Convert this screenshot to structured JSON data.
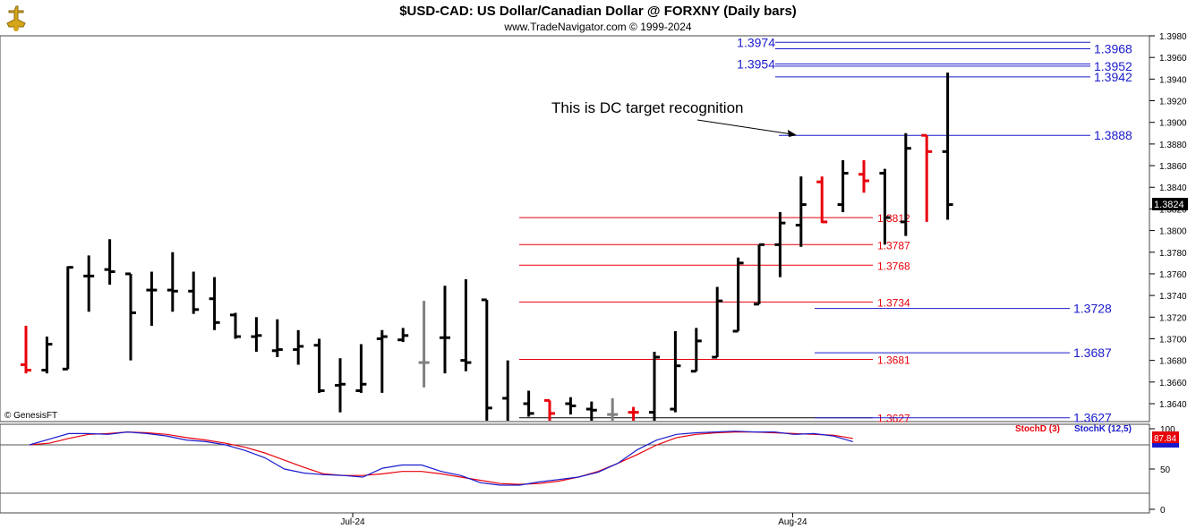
{
  "header": {
    "title": "$USD-CAD:  US Dollar/Canadian Dollar @ FORXNY  (Daily bars)",
    "subtitle": "www.TradeNavigator.com © 1999-2024"
  },
  "watermark": "© GenesisFT",
  "logo": {
    "icon": "golden-bull-logo-icon"
  },
  "colors": {
    "up_bar": "#000000",
    "down_bar": "#e8000b",
    "neutral_bar": "#808080",
    "blue_level": "#1a1acc",
    "red_level": "#e8000b",
    "last_price_bg": "#000000",
    "stoch_d": "#e8000b",
    "stoch_k": "#1a1acc"
  },
  "chart_data": [
    {
      "type": "ohlc",
      "title": "$USD-CAD:  US Dollar/Canadian Dollar @ FORXNY  (Daily bars)",
      "ylim": [
        1.3615,
        1.399
      ],
      "y_ticks": [
        "1.3980",
        "1.3960",
        "1.3940",
        "1.3920",
        "1.3900",
        "1.3880",
        "1.3860",
        "1.3840",
        "1.3820",
        "1.3800",
        "1.3780",
        "1.3760",
        "1.3740",
        "1.3720",
        "1.3700",
        "1.3680",
        "1.3660",
        "1.3640"
      ],
      "x_labels": [
        {
          "label": "Jul-24",
          "bar_index": 15
        },
        {
          "label": "Aug-24",
          "bar_index": 36
        }
      ],
      "last_price": "1.3824",
      "bars": [
        {
          "o": 1.3676,
          "h": 1.3712,
          "l": 1.3668,
          "c": 1.3671,
          "color": "red"
        },
        {
          "o": 1.3671,
          "h": 1.3702,
          "l": 1.3668,
          "c": 1.3695,
          "color": "black"
        },
        {
          "o": 1.3672,
          "h": 1.3767,
          "l": 1.3672,
          "c": 1.3766,
          "color": "black"
        },
        {
          "o": 1.3758,
          "h": 1.3777,
          "l": 1.3725,
          "c": 1.3758,
          "color": "black"
        },
        {
          "o": 1.3764,
          "h": 1.3792,
          "l": 1.375,
          "c": 1.3762,
          "color": "black"
        },
        {
          "o": 1.376,
          "h": 1.376,
          "l": 1.368,
          "c": 1.3724,
          "color": "black"
        },
        {
          "o": 1.3745,
          "h": 1.3762,
          "l": 1.3712,
          "c": 1.3745,
          "color": "black"
        },
        {
          "o": 1.3745,
          "h": 1.378,
          "l": 1.3725,
          "c": 1.3744,
          "color": "black"
        },
        {
          "o": 1.3744,
          "h": 1.3762,
          "l": 1.3723,
          "c": 1.3727,
          "color": "black"
        },
        {
          "o": 1.3737,
          "h": 1.3757,
          "l": 1.3708,
          "c": 1.3715,
          "color": "black"
        },
        {
          "o": 1.3722,
          "h": 1.3724,
          "l": 1.37,
          "c": 1.3702,
          "color": "black"
        },
        {
          "o": 1.3702,
          "h": 1.372,
          "l": 1.3688,
          "c": 1.3703,
          "color": "black"
        },
        {
          "o": 1.3689,
          "h": 1.3718,
          "l": 1.3683,
          "c": 1.369,
          "color": "black"
        },
        {
          "o": 1.369,
          "h": 1.3708,
          "l": 1.3676,
          "c": 1.3693,
          "color": "black"
        },
        {
          "o": 1.3694,
          "h": 1.37,
          "l": 1.365,
          "c": 1.3652,
          "color": "black"
        },
        {
          "o": 1.3657,
          "h": 1.3682,
          "l": 1.3632,
          "c": 1.3658,
          "color": "black"
        },
        {
          "o": 1.3652,
          "h": 1.3695,
          "l": 1.365,
          "c": 1.3658,
          "color": "black"
        },
        {
          "o": 1.37,
          "h": 1.3708,
          "l": 1.365,
          "c": 1.3702,
          "color": "black"
        },
        {
          "o": 1.3699,
          "h": 1.371,
          "l": 1.3697,
          "c": 1.3703,
          "color": "black"
        },
        {
          "o": 1.3678,
          "h": 1.3735,
          "l": 1.3655,
          "c": 1.3678,
          "color": "gray"
        },
        {
          "o": 1.3701,
          "h": 1.3749,
          "l": 1.3668,
          "c": 1.3701,
          "color": "black"
        },
        {
          "o": 1.368,
          "h": 1.3755,
          "l": 1.367,
          "c": 1.3678,
          "color": "black"
        },
        {
          "o": 1.3736,
          "h": 1.3736,
          "l": 1.3618,
          "c": 1.3636,
          "color": "black"
        },
        {
          "o": 1.3645,
          "h": 1.368,
          "l": 1.3618,
          "c": 1.362,
          "color": "black"
        },
        {
          "o": 1.364,
          "h": 1.3652,
          "l": 1.3628,
          "c": 1.3631,
          "color": "black"
        },
        {
          "o": 1.3643,
          "h": 1.3643,
          "l": 1.362,
          "c": 1.3631,
          "color": "red"
        },
        {
          "o": 1.364,
          "h": 1.3646,
          "l": 1.363,
          "c": 1.3638,
          "color": "black"
        },
        {
          "o": 1.3635,
          "h": 1.3642,
          "l": 1.3622,
          "c": 1.3634,
          "color": "black"
        },
        {
          "o": 1.363,
          "h": 1.3645,
          "l": 1.362,
          "c": 1.363,
          "color": "gray"
        },
        {
          "o": 1.3632,
          "h": 1.3637,
          "l": 1.3622,
          "c": 1.3632,
          "color": "red"
        },
        {
          "o": 1.3632,
          "h": 1.3688,
          "l": 1.362,
          "c": 1.3683,
          "color": "black"
        },
        {
          "o": 1.3635,
          "h": 1.3707,
          "l": 1.3632,
          "c": 1.3675,
          "color": "black"
        },
        {
          "o": 1.367,
          "h": 1.371,
          "l": 1.367,
          "c": 1.3698,
          "color": "black"
        },
        {
          "o": 1.3683,
          "h": 1.3748,
          "l": 1.3683,
          "c": 1.3735,
          "color": "black"
        },
        {
          "o": 1.3707,
          "h": 1.3775,
          "l": 1.3707,
          "c": 1.377,
          "color": "black"
        },
        {
          "o": 1.3732,
          "h": 1.3787,
          "l": 1.3732,
          "c": 1.3787,
          "color": "black"
        },
        {
          "o": 1.3787,
          "h": 1.3817,
          "l": 1.3757,
          "c": 1.3807,
          "color": "black"
        },
        {
          "o": 1.3805,
          "h": 1.385,
          "l": 1.3785,
          "c": 1.3824,
          "color": "black"
        },
        {
          "o": 1.3845,
          "h": 1.385,
          "l": 1.3807,
          "c": 1.3808,
          "color": "red"
        },
        {
          "o": 1.3824,
          "h": 1.3865,
          "l": 1.3817,
          "c": 1.3853,
          "color": "black"
        },
        {
          "o": 1.3852,
          "h": 1.3865,
          "l": 1.3835,
          "c": 1.3846,
          "color": "red"
        },
        {
          "o": 1.3853,
          "h": 1.3857,
          "l": 1.3787,
          "c": 1.3812,
          "color": "black"
        },
        {
          "o": 1.3808,
          "h": 1.389,
          "l": 1.3795,
          "c": 1.3876,
          "color": "black"
        },
        {
          "o": 1.3888,
          "h": 1.3888,
          "l": 1.3808,
          "c": 1.3873,
          "color": "red"
        },
        {
          "o": 1.3873,
          "h": 1.3946,
          "l": 1.381,
          "c": 1.3824,
          "color": "black"
        }
      ],
      "levels": [
        {
          "value": 1.3974,
          "label": "1.3974",
          "color": "blue",
          "label_side": "left",
          "start_bar": 40,
          "end_bar": 49
        },
        {
          "value": 1.3968,
          "label": "1.3968",
          "color": "blue",
          "label_side": "right",
          "start_bar": 40,
          "end_bar": 49
        },
        {
          "value": 1.3954,
          "label": "1.3954",
          "color": "blue",
          "label_side": "left",
          "start_bar": 40,
          "end_bar": 49
        },
        {
          "value": 1.3952,
          "label": "1.3952",
          "color": "blue",
          "label_side": "right",
          "start_bar": 40,
          "end_bar": 49
        },
        {
          "value": 1.3942,
          "label": "1.3942",
          "color": "blue",
          "label_side": "right",
          "start_bar": 40,
          "end_bar": 49
        },
        {
          "value": 1.3888,
          "label": "1.3888",
          "color": "blue",
          "label_side": "right",
          "start_bar": 40,
          "end_bar": 49
        },
        {
          "value": 1.3812,
          "label": "1.3812",
          "color": "red",
          "label_side": "right",
          "start_bar": 26,
          "end_bar": 43
        },
        {
          "value": 1.3787,
          "label": "1.3787",
          "color": "red",
          "label_side": "right",
          "start_bar": 26,
          "end_bar": 43
        },
        {
          "value": 1.3768,
          "label": "1.3768",
          "color": "red",
          "label_side": "right",
          "start_bar": 26,
          "end_bar": 43
        },
        {
          "value": 1.3734,
          "label": "1.3734",
          "color": "red",
          "label_side": "right",
          "start_bar": 26,
          "end_bar": 43
        },
        {
          "value": 1.3728,
          "label": "1.3728",
          "color": "blue",
          "label_side": "right",
          "start_bar": 41,
          "end_bar": 52
        },
        {
          "value": 1.3687,
          "label": "1.3687",
          "color": "blue",
          "label_side": "right",
          "start_bar": 41,
          "end_bar": 52
        },
        {
          "value": 1.3681,
          "label": "1.3681",
          "color": "red",
          "label_side": "right",
          "start_bar": 26,
          "end_bar": 43
        },
        {
          "value": 1.3627,
          "label": "1.3627",
          "color": "black",
          "label_side": "right",
          "start_bar": 28,
          "end_bar": 43
        },
        {
          "value": 1.3627,
          "label": "1.3627",
          "color": "blue",
          "label_side": "right",
          "start_bar": 41,
          "end_bar": 52
        }
      ],
      "annotation": {
        "text": "This is DC target recognition",
        "points_to_bar": 41,
        "points_to_value": 1.3888
      }
    },
    {
      "type": "line",
      "ylim": [
        0,
        100
      ],
      "y_ticks": [
        "100",
        "50",
        "0"
      ],
      "reference_lines": [
        80,
        20
      ],
      "legend": [
        "StochD (3)",
        "StochK (12,5)"
      ],
      "last_values": {
        "StochD": "87.84",
        "StochK": ""
      },
      "series": [
        {
          "name": "StochD (3)",
          "color": "red",
          "values": [
            80,
            82,
            88,
            93,
            94,
            96,
            95,
            93,
            89,
            86,
            82,
            77,
            70,
            61,
            52,
            44,
            42,
            42,
            44,
            47,
            47,
            44,
            40,
            36,
            32,
            31,
            32,
            35,
            40,
            47,
            57,
            68,
            80,
            89,
            93,
            95,
            96,
            96,
            95,
            94,
            93,
            92,
            88
          ]
        },
        {
          "name": "StochK (12,5)",
          "color": "blue",
          "values": [
            80,
            87,
            94,
            94,
            93,
            96,
            94,
            91,
            86,
            84,
            80,
            73,
            64,
            50,
            45,
            43,
            42,
            40,
            51,
            55,
            55,
            47,
            42,
            33,
            30,
            30,
            34,
            37,
            40,
            46,
            57,
            74,
            86,
            93,
            95,
            96,
            97,
            96,
            96,
            93,
            94,
            91,
            84
          ]
        }
      ]
    }
  ]
}
